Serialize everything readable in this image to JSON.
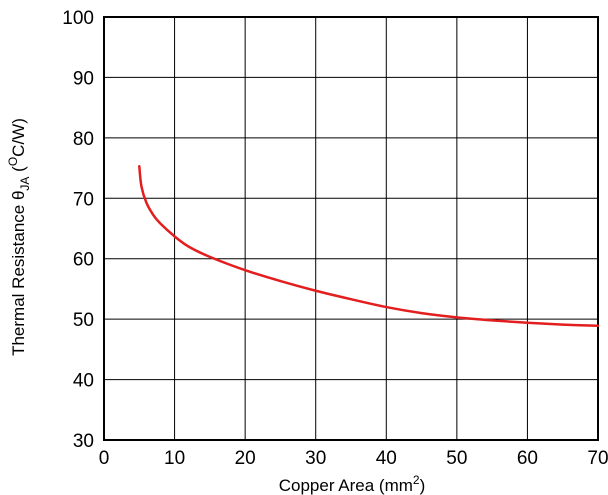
{
  "chart_data": {
    "type": "line",
    "xlabel": "Copper Area (mm",
    "xlabel_sup": "2",
    "xlabel_close": ")",
    "ylabel_main": "Thermal Resistance ",
    "ylabel_theta": "θ",
    "ylabel_sub": "JA",
    "ylabel_unit_open": " (",
    "ylabel_unit_sup": "O",
    "ylabel_unit": "C/W)",
    "xlim": [
      0,
      70
    ],
    "ylim": [
      30,
      100
    ],
    "x_ticks": [
      "0",
      "10",
      "20",
      "30",
      "40",
      "50",
      "60",
      "70"
    ],
    "y_ticks": [
      "30",
      "40",
      "50",
      "60",
      "70",
      "80",
      "90",
      "100"
    ],
    "grid": true,
    "series": [
      {
        "color": "#e31e1e",
        "x": [
          5,
          5.3,
          6,
          7,
          8,
          10,
          12,
          15,
          20,
          25,
          30,
          35,
          40,
          45,
          50,
          55,
          60,
          65,
          70
        ],
        "y": [
          75.3,
          72.0,
          69.3,
          67.2,
          65.8,
          63.7,
          62.0,
          60.3,
          58.1,
          56.3,
          54.7,
          53.3,
          52.0,
          51.0,
          50.3,
          49.8,
          49.4,
          49.1,
          48.9
        ]
      }
    ]
  }
}
